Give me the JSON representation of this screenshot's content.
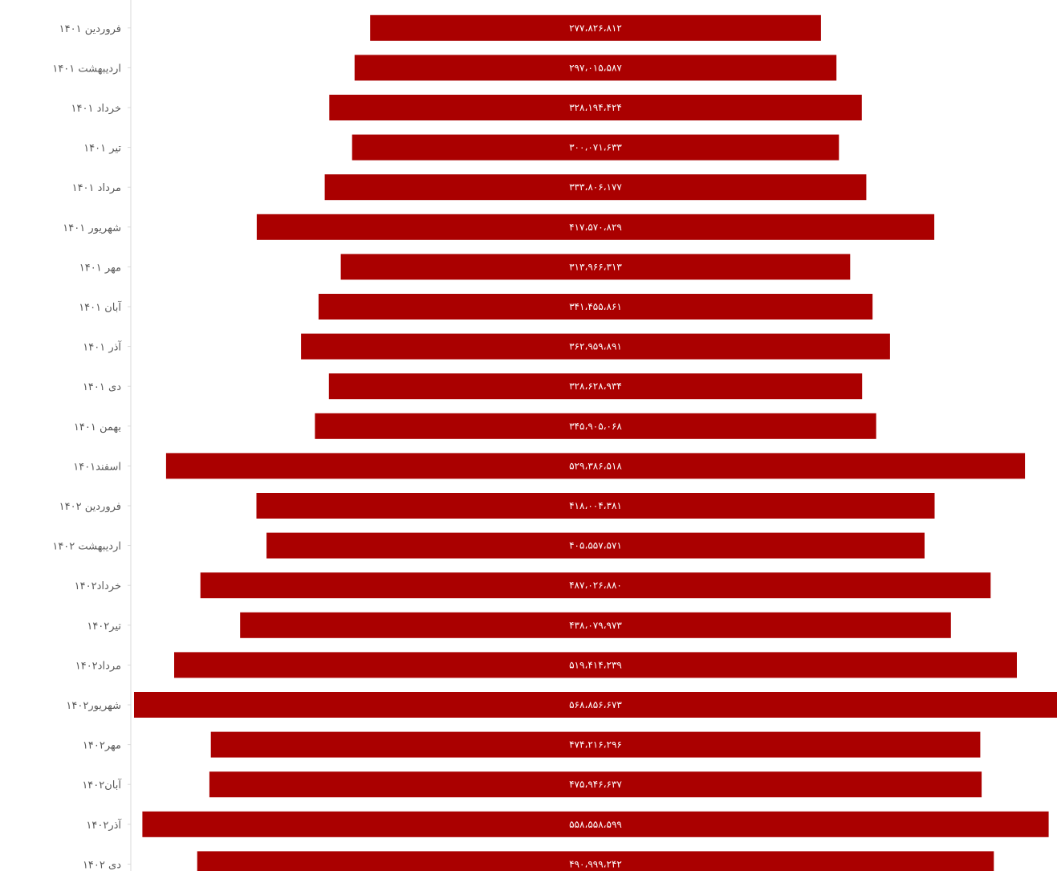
{
  "chart_data": {
    "type": "bar",
    "orientation": "horizontal",
    "layout": "centered-funnel",
    "title": "",
    "xlabel": "",
    "ylabel": "",
    "grid": false,
    "legend": "none",
    "bar_color": "#AA0000",
    "axis_color": "#D9D9D9",
    "categories": [
      "فروردین ۱۴۰۱",
      "اردیبهشت ۱۴۰۱",
      "خرداد ۱۴۰۱",
      "تیر ۱۴۰۱",
      "مرداد ۱۴۰۱",
      "شهریور ۱۴۰۱",
      "مهر ۱۴۰۱",
      "آبان ۱۴۰۱",
      "آذر ۱۴۰۱",
      "دی ۱۴۰۱",
      "بهمن ۱۴۰۱",
      "اسفند۱۴۰۱",
      "فروردین ۱۴۰۲",
      "اردیبهشت ۱۴۰۲",
      "خرداد۱۴۰۲",
      "تیر۱۴۰۲",
      "مرداد۱۴۰۲",
      "شهریور۱۴۰۲",
      "مهر۱۴۰۲",
      "آبان۱۴۰۲",
      "آذر۱۴۰۲",
      "دی ۱۴۰۲"
    ],
    "values": [
      277826812,
      297015587,
      328194424,
      300071633,
      333806177,
      417570829,
      313966313,
      341455861,
      362959891,
      328628934,
      345905068,
      529386518,
      418004381,
      405557571,
      487026880,
      438079973,
      519414239,
      568856673,
      474216296,
      475946637,
      558558599,
      490999242
    ],
    "value_labels": [
      "۲۷۷،۸۲۶،۸۱۲",
      "۲۹۷،۰۱۵،۵۸۷",
      "۳۲۸،۱۹۴،۴۲۴",
      "۳۰۰،۰۷۱،۶۳۳",
      "۳۳۳،۸۰۶،۱۷۷",
      "۴۱۷،۵۷۰،۸۲۹",
      "۳۱۳،۹۶۶،۳۱۳",
      "۳۴۱،۴۵۵،۸۶۱",
      "۳۶۲،۹۵۹،۸۹۱",
      "۳۲۸،۶۲۸،۹۳۴",
      "۳۴۵،۹۰۵،۰۶۸",
      "۵۲۹،۳۸۶،۵۱۸",
      "۴۱۸،۰۰۴،۳۸۱",
      "۴۰۵،۵۵۷،۵۷۱",
      "۴۸۷،۰۲۶،۸۸۰",
      "۴۳۸،۰۷۹،۹۷۳",
      "۵۱۹،۴۱۴،۲۳۹",
      "۵۶۸،۸۵۶،۶۷۳",
      "۴۷۴،۲۱۶،۲۹۶",
      "۴۷۵،۹۴۶،۶۳۷",
      "۵۵۸،۵۵۸،۵۹۹",
      "۴۹۰،۹۹۹،۲۴۲"
    ]
  }
}
